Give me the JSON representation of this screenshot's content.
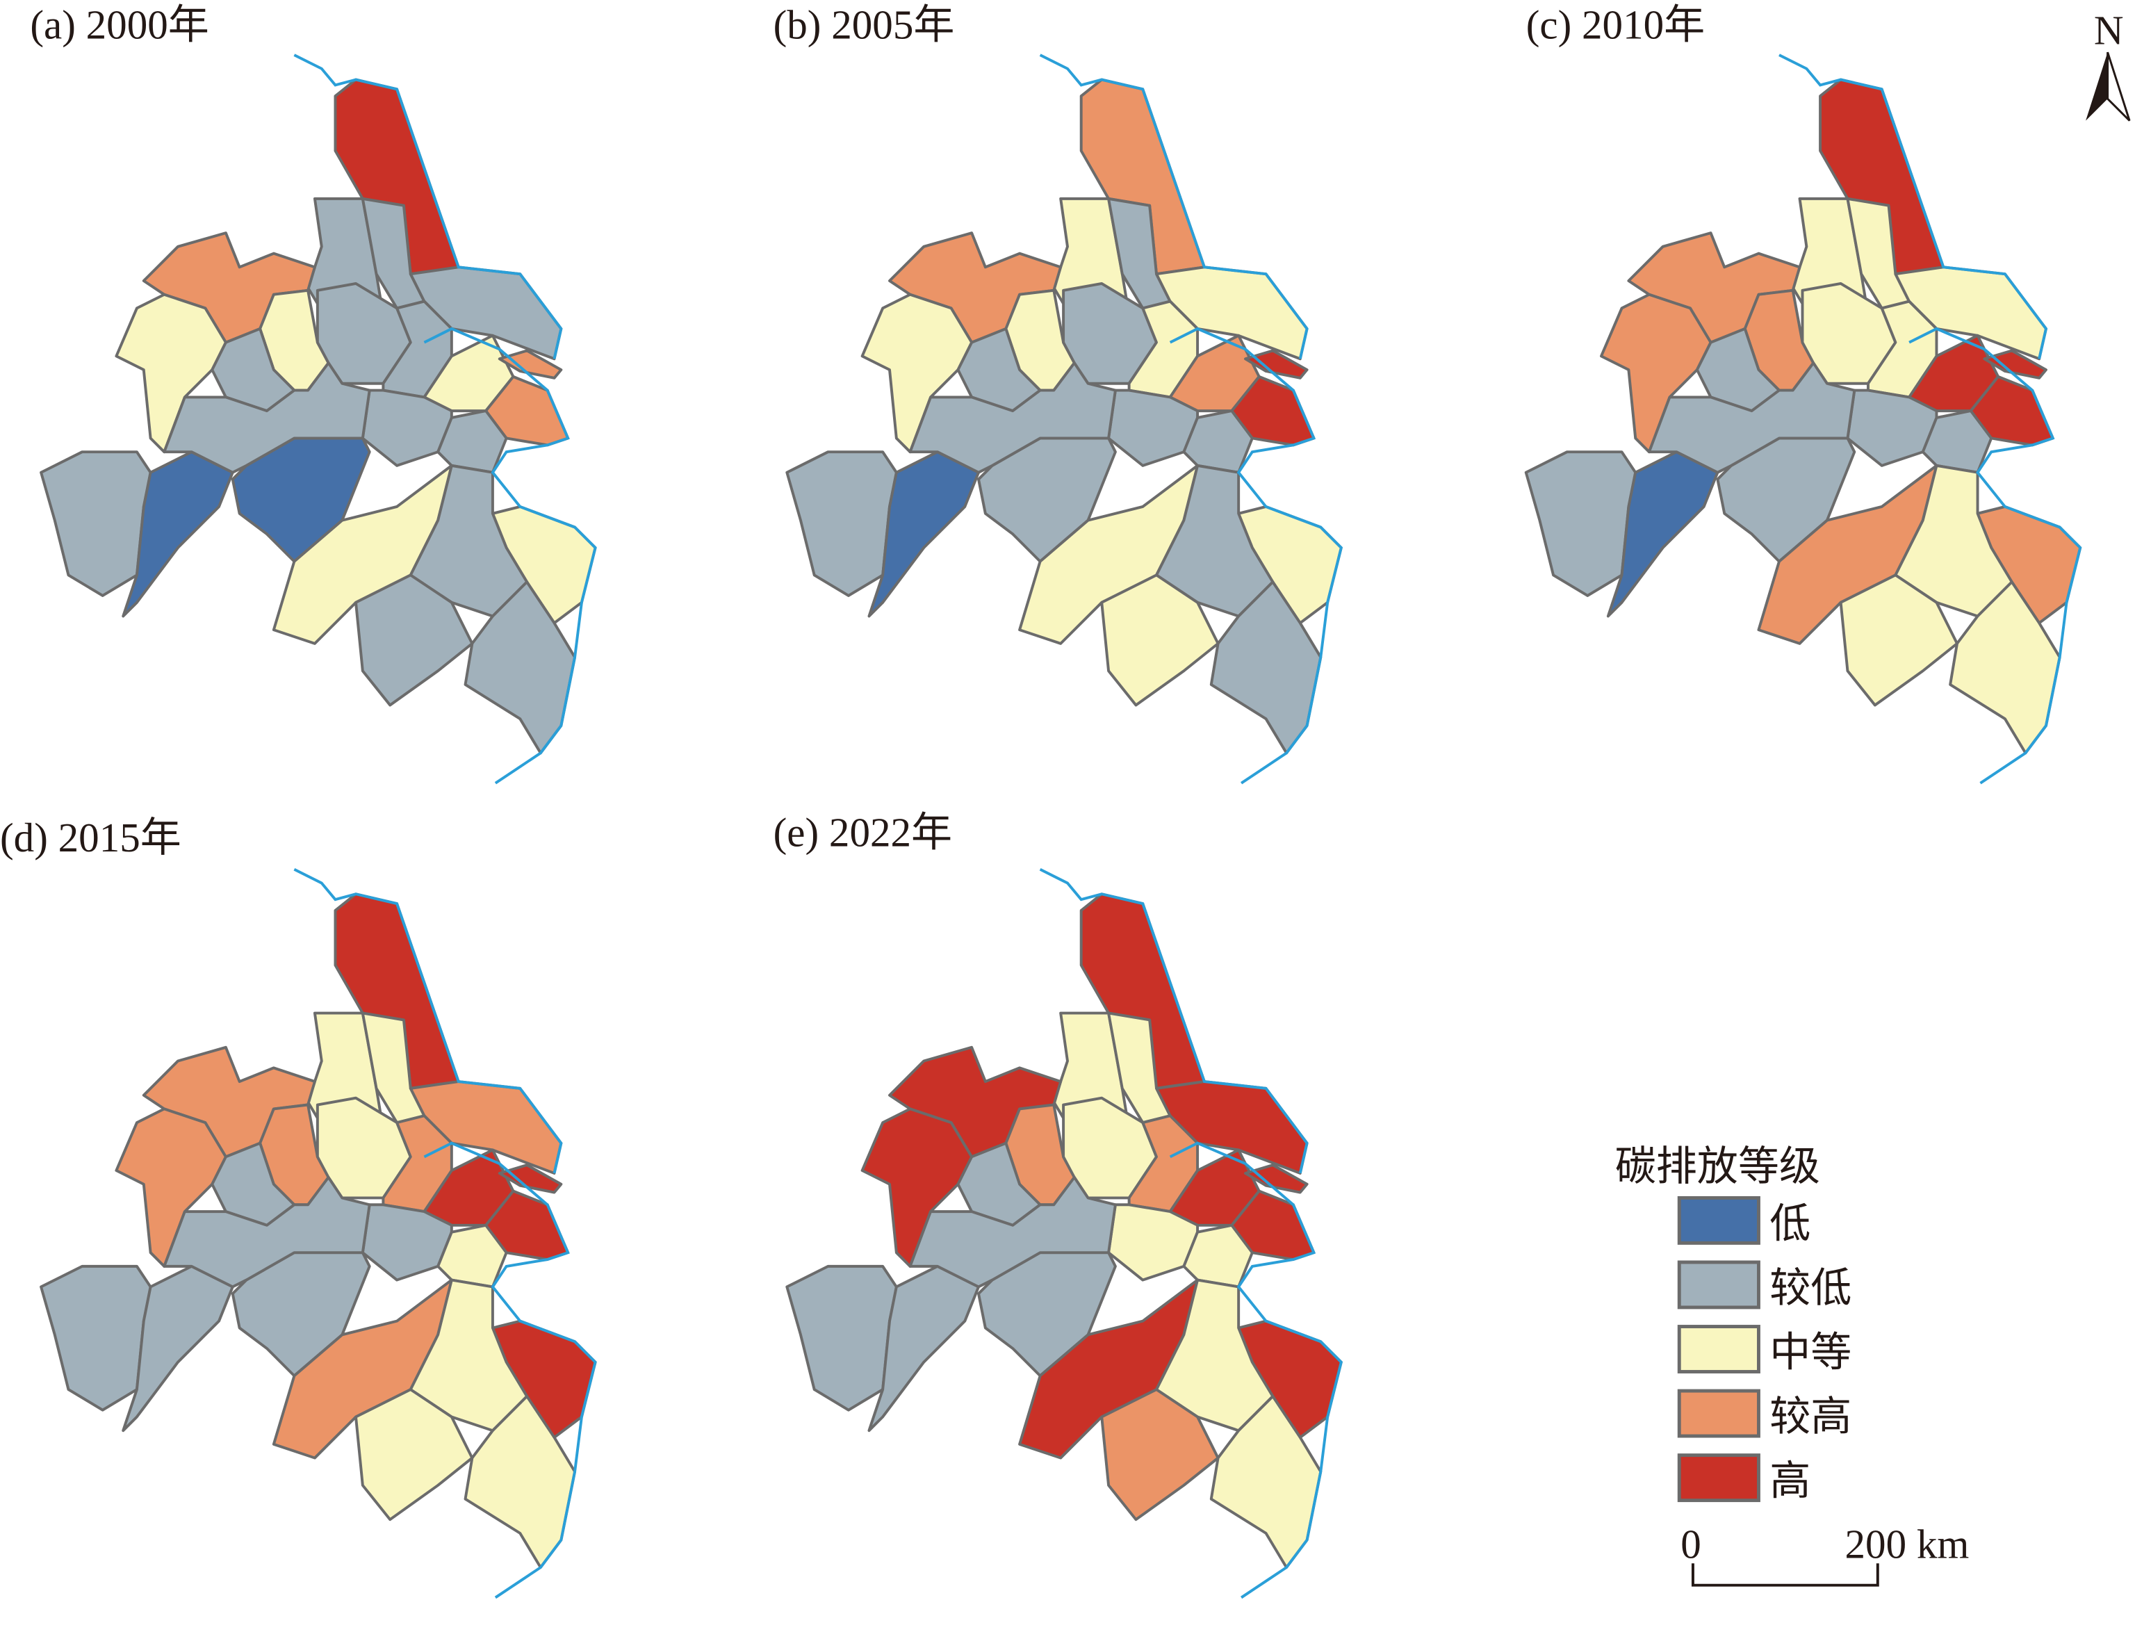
{
  "colors": {
    "levels": [
      "#4570a8",
      "#a1b1bb",
      "#f9f6c0",
      "#eb9467",
      "#c93127"
    ],
    "border": "#6b6b6b",
    "water": "#2a9fd8"
  },
  "panels": [
    {
      "title": "(a) 2000年",
      "levels": [
        4,
        1,
        1,
        1,
        3,
        2,
        2,
        1,
        1,
        1,
        2,
        3,
        3,
        1,
        1,
        1,
        0,
        0,
        1,
        2,
        2,
        1,
        1,
        1
      ]
    },
    {
      "title": "(b) 2005年",
      "levels": [
        3,
        2,
        1,
        2,
        3,
        2,
        2,
        1,
        1,
        2,
        3,
        4,
        4,
        1,
        1,
        1,
        0,
        1,
        1,
        2,
        2,
        1,
        2,
        1
      ]
    },
    {
      "title": "(c) 2010年",
      "levels": [
        4,
        2,
        2,
        2,
        3,
        3,
        3,
        1,
        2,
        2,
        4,
        4,
        4,
        1,
        1,
        1,
        0,
        1,
        1,
        3,
        3,
        2,
        2,
        2
      ]
    },
    {
      "title": "(d) 2015年",
      "levels": [
        4,
        2,
        2,
        3,
        3,
        3,
        3,
        1,
        2,
        3,
        4,
        4,
        4,
        1,
        2,
        1,
        1,
        1,
        1,
        3,
        4,
        2,
        2,
        2
      ]
    },
    {
      "title": "(e) 2022年",
      "levels": [
        4,
        2,
        2,
        4,
        4,
        3,
        4,
        1,
        2,
        3,
        4,
        4,
        4,
        2,
        2,
        1,
        1,
        1,
        1,
        4,
        4,
        2,
        3,
        2
      ]
    }
  ],
  "north_arrow": {
    "label": "N"
  },
  "legend": {
    "title": "碳排放等级",
    "items": [
      {
        "label": "低"
      },
      {
        "label": "较低"
      },
      {
        "label": "中等"
      },
      {
        "label": "较高"
      },
      {
        "label": "高"
      }
    ]
  },
  "scale_bar": {
    "start": "0",
    "end": "200 km"
  }
}
